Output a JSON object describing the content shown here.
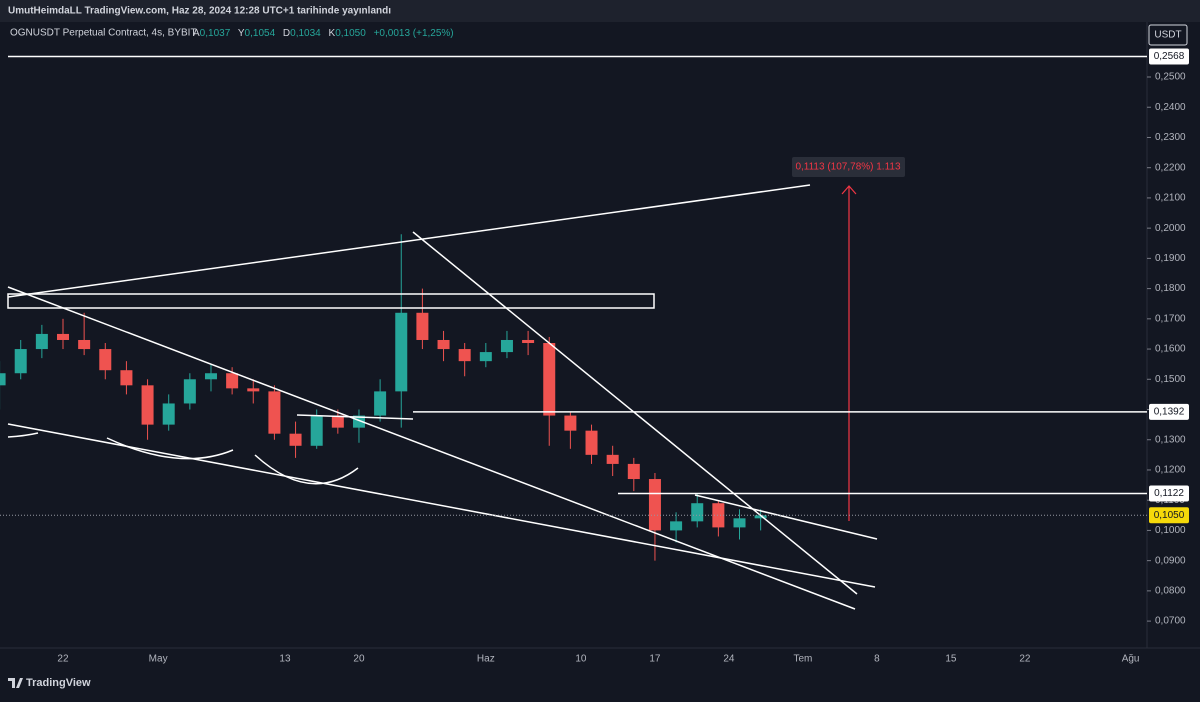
{
  "header": {
    "publisher": "UmutHeimdaLL TradingView.com, Haz 28, 2024 12:28 UTC+1 tarihinde yayınlandı",
    "symbol": "OGNUSDT Perpetual Contract, 4s, BYBIT",
    "o_key": "A",
    "o": "0,1037",
    "h_key": "Y",
    "h": "0,1054",
    "l_key": "D",
    "l": "0,1034",
    "c_key": "K",
    "c": "0,1050",
    "change": "+0,0013 (+1,25%)"
  },
  "currency": "USDT",
  "footer": "TradingView",
  "chart_data": {
    "type": "candlestick",
    "grid": false,
    "up_color": "#26a69a",
    "down_color": "#ef5350",
    "x": [
      -6,
      -4,
      -2,
      0,
      2,
      4,
      6,
      8,
      10,
      12,
      14,
      16,
      18,
      20,
      22,
      24,
      26,
      28,
      30,
      32,
      34,
      36,
      38,
      40,
      42,
      44,
      46,
      48,
      50,
      52,
      54,
      56,
      58,
      60,
      62,
      64,
      66
    ],
    "open": [
      0.148,
      0.152,
      0.16,
      0.165,
      0.163,
      0.16,
      0.153,
      0.148,
      0.135,
      0.142,
      0.15,
      0.152,
      0.147,
      0.146,
      0.132,
      0.128,
      0.138,
      0.134,
      0.138,
      0.146,
      0.172,
      0.163,
      0.16,
      0.156,
      0.159,
      0.163,
      0.162,
      0.138,
      0.133,
      0.125,
      0.122,
      0.117,
      0.1,
      0.103,
      0.109,
      0.101,
      0.104
    ],
    "high": [
      0.156,
      0.163,
      0.168,
      0.17,
      0.172,
      0.162,
      0.156,
      0.15,
      0.145,
      0.152,
      0.155,
      0.154,
      0.15,
      0.148,
      0.136,
      0.14,
      0.14,
      0.14,
      0.15,
      0.198,
      0.18,
      0.166,
      0.162,
      0.162,
      0.166,
      0.166,
      0.164,
      0.139,
      0.135,
      0.128,
      0.124,
      0.119,
      0.106,
      0.112,
      0.11,
      0.107,
      0.107
    ],
    "low": [
      0.14,
      0.15,
      0.157,
      0.16,
      0.158,
      0.15,
      0.145,
      0.13,
      0.133,
      0.14,
      0.146,
      0.145,
      0.142,
      0.13,
      0.124,
      0.127,
      0.132,
      0.129,
      0.136,
      0.134,
      0.16,
      0.156,
      0.151,
      0.154,
      0.157,
      0.158,
      0.128,
      0.127,
      0.122,
      0.118,
      0.113,
      0.09,
      0.096,
      0.101,
      0.098,
      0.097,
      0.1
    ],
    "close": [
      0.152,
      0.16,
      0.165,
      0.163,
      0.16,
      0.153,
      0.148,
      0.135,
      0.142,
      0.15,
      0.152,
      0.147,
      0.146,
      0.132,
      0.128,
      0.138,
      0.134,
      0.138,
      0.146,
      0.172,
      0.163,
      0.16,
      0.156,
      0.159,
      0.163,
      0.162,
      0.138,
      0.133,
      0.125,
      0.122,
      0.117,
      0.1,
      0.103,
      0.109,
      0.101,
      0.104,
      0.105
    ],
    "xlim": [
      -5.96,
      102.55
    ],
    "xticks": [
      {
        "value": 0,
        "label": "22"
      },
      {
        "value": 9,
        "label": "May"
      },
      {
        "value": 21,
        "label": "13"
      },
      {
        "value": 28,
        "label": "20"
      },
      {
        "value": 40,
        "label": "Haz"
      },
      {
        "value": 49,
        "label": "10"
      },
      {
        "value": 56,
        "label": "17"
      },
      {
        "value": 63,
        "label": "24"
      },
      {
        "value": 70,
        "label": "Tem"
      },
      {
        "value": 77,
        "label": "8"
      },
      {
        "value": 84,
        "label": "15"
      },
      {
        "value": 91,
        "label": "22"
      },
      {
        "value": 101,
        "label": "Ağu"
      }
    ],
    "ylim": [
      0.0611,
      0.2682
    ],
    "yticks": [
      {
        "value": 0.07,
        "label": "0,0700"
      },
      {
        "value": 0.08,
        "label": "0,0800"
      },
      {
        "value": 0.09,
        "label": "0,0900"
      },
      {
        "value": 0.1,
        "label": "0,1000"
      },
      {
        "value": 0.11,
        "label": "0,1100"
      },
      {
        "value": 0.12,
        "label": "0,1200"
      },
      {
        "value": 0.13,
        "label": "0,1300"
      },
      {
        "value": 0.14,
        "label": "0,1400"
      },
      {
        "value": 0.15,
        "label": "0,1500"
      },
      {
        "value": 0.16,
        "label": "0,1600"
      },
      {
        "value": 0.17,
        "label": "0,1700"
      },
      {
        "value": 0.18,
        "label": "0,1800"
      },
      {
        "value": 0.19,
        "label": "0,1900"
      },
      {
        "value": 0.2,
        "label": "0,2000"
      },
      {
        "value": 0.21,
        "label": "0,2100"
      },
      {
        "value": 0.22,
        "label": "0,2200"
      },
      {
        "value": 0.23,
        "label": "0,2300"
      },
      {
        "value": 0.24,
        "label": "0,2400"
      },
      {
        "value": 0.25,
        "label": "0,2500"
      }
    ],
    "levels": [
      {
        "value": 0.2568,
        "label": "0,2568"
      },
      {
        "value": 0.1392,
        "label": "0,1392"
      },
      {
        "value": 0.1122,
        "label": "0,1122"
      }
    ],
    "last": {
      "value": 0.105,
      "label": "0,1050"
    },
    "measure": {
      "label": "0,1113 (107,78%) 1.113"
    }
  }
}
